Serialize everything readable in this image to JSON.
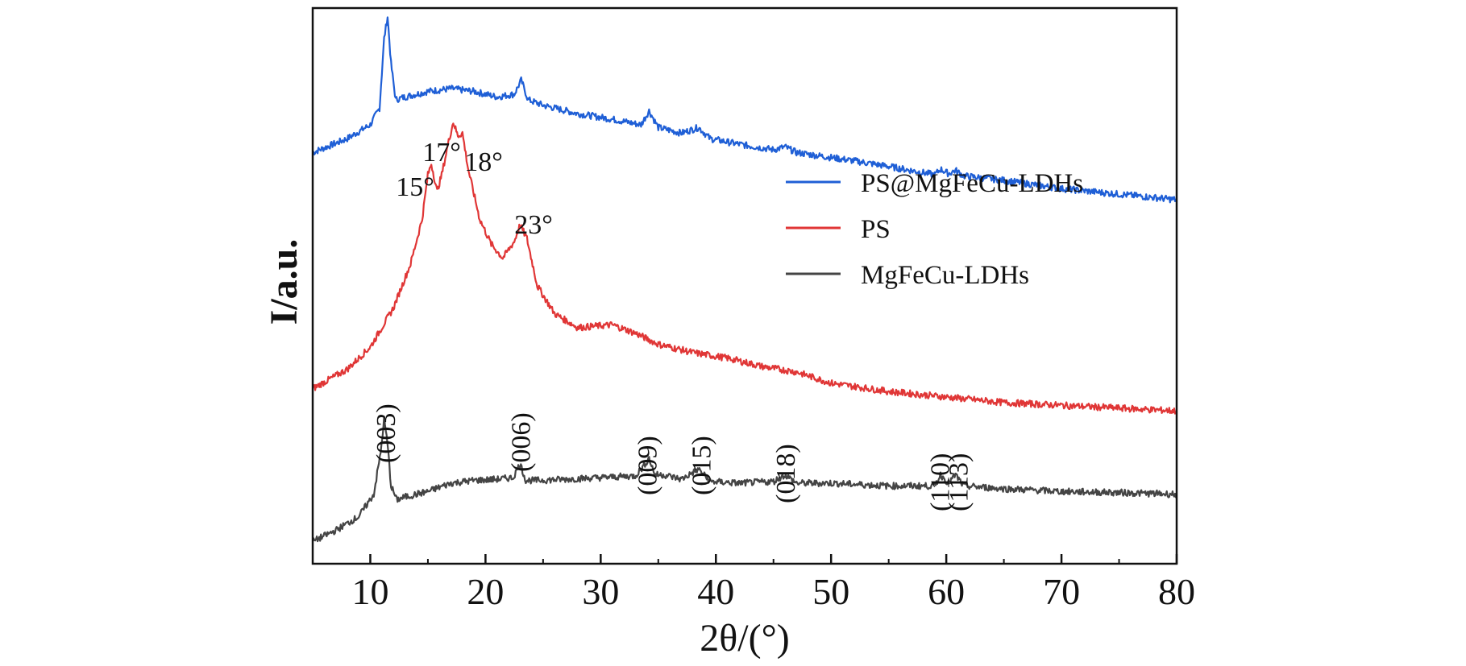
{
  "chart_data": {
    "type": "line",
    "xlabel": "2θ/(°)",
    "ylabel": "I/a.u.",
    "xlim": [
      5,
      80
    ],
    "xticks": [
      10,
      20,
      30,
      40,
      50,
      60,
      70,
      80
    ],
    "yticks": [],
    "legend_position": "center-right",
    "series": [
      {
        "name": "PS@MgFeCu-LDHs",
        "color": "#1f5fd6",
        "x": [
          5,
          8,
          10,
          10.8,
          11.2,
          11.5,
          11.8,
          12.2,
          13,
          15,
          17,
          19,
          21,
          22.5,
          23.1,
          23.7,
          25,
          28,
          31,
          33.5,
          34.2,
          35,
          37,
          38.5,
          39.5,
          42,
          45,
          46,
          47,
          52,
          55,
          59,
          59.5,
          60.2,
          60.8,
          61.5,
          65,
          70,
          75,
          80
        ],
        "y": [
          0.74,
          0.765,
          0.79,
          0.82,
          0.945,
          0.985,
          0.9,
          0.835,
          0.84,
          0.85,
          0.855,
          0.85,
          0.84,
          0.845,
          0.87,
          0.835,
          0.825,
          0.81,
          0.8,
          0.79,
          0.815,
          0.785,
          0.775,
          0.785,
          0.765,
          0.755,
          0.745,
          0.75,
          0.74,
          0.725,
          0.715,
          0.7,
          0.71,
          0.702,
          0.708,
          0.698,
          0.69,
          0.675,
          0.665,
          0.655
        ]
      },
      {
        "name": "PS",
        "color": "#e03636",
        "x": [
          5,
          8,
          10,
          12,
          13.5,
          14.5,
          15,
          15.3,
          15.8,
          16.2,
          16.8,
          17.2,
          17.6,
          18,
          18.5,
          19.5,
          20.5,
          21.5,
          22.5,
          23,
          23.6,
          24.5,
          26,
          28,
          31,
          33,
          35,
          38,
          41,
          44,
          47,
          50,
          55,
          60,
          65,
          70,
          75,
          80
        ],
        "y": [
          0.315,
          0.35,
          0.39,
          0.46,
          0.54,
          0.62,
          0.7,
          0.72,
          0.67,
          0.7,
          0.76,
          0.795,
          0.77,
          0.775,
          0.71,
          0.62,
          0.575,
          0.55,
          0.58,
          0.61,
          0.585,
          0.5,
          0.45,
          0.425,
          0.43,
          0.415,
          0.395,
          0.38,
          0.37,
          0.355,
          0.345,
          0.325,
          0.31,
          0.3,
          0.29,
          0.285,
          0.28,
          0.275
        ]
      },
      {
        "name": "MgFeCu-LDHs",
        "color": "#444444",
        "x": [
          5,
          7,
          9,
          10.3,
          10.9,
          11.2,
          11.5,
          11.8,
          12.3,
          13,
          15,
          17,
          19,
          21,
          22.4,
          23,
          23.5,
          24.5,
          27,
          30,
          33,
          33.7,
          34.2,
          34.7,
          35.5,
          37,
          38.5,
          39.5,
          42,
          45,
          46,
          47,
          50,
          55,
          59,
          59.5,
          60.2,
          60.8,
          61.5,
          65,
          70,
          75,
          80
        ],
        "y": [
          0.04,
          0.06,
          0.085,
          0.125,
          0.2,
          0.26,
          0.215,
          0.14,
          0.115,
          0.12,
          0.13,
          0.145,
          0.15,
          0.152,
          0.155,
          0.18,
          0.15,
          0.15,
          0.152,
          0.155,
          0.158,
          0.175,
          0.19,
          0.16,
          0.16,
          0.152,
          0.17,
          0.148,
          0.145,
          0.148,
          0.16,
          0.145,
          0.145,
          0.14,
          0.14,
          0.16,
          0.145,
          0.16,
          0.14,
          0.135,
          0.13,
          0.128,
          0.125
        ]
      }
    ],
    "peak_annotations_PS": [
      {
        "label": "15°",
        "x": 15
      },
      {
        "label": "17°",
        "x": 17
      },
      {
        "label": "18°",
        "x": 18
      },
      {
        "label": "23°",
        "x": 23
      }
    ],
    "peak_annotations_LDH": [
      {
        "label": "(003)",
        "x": 11.3
      },
      {
        "label": "(006)",
        "x": 23
      },
      {
        "label": "(009)",
        "x": 34
      },
      {
        "label": "(015)",
        "x": 38.7
      },
      {
        "label": "(018)",
        "x": 46
      },
      {
        "label": "(110)",
        "x": 59.4
      },
      {
        "label": "(113)",
        "x": 61
      }
    ]
  }
}
